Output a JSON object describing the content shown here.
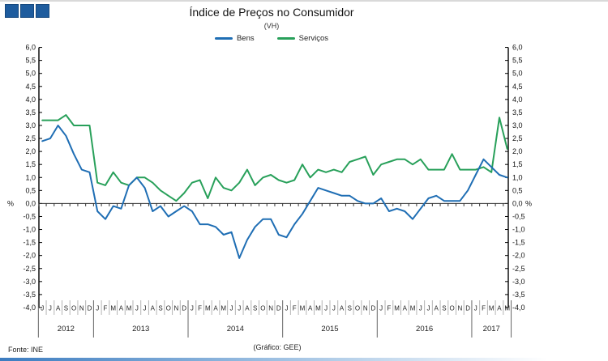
{
  "header": {
    "title": "Índice de Preços no Consumidor",
    "subtitle": "(VH)"
  },
  "legend": [
    {
      "label": "Bens",
      "color": "#1F6EB4"
    },
    {
      "label": "Serviços",
      "color": "#28A05A"
    }
  ],
  "axis": {
    "unit_left": "%",
    "unit_right": "%",
    "ylim": [
      -4.0,
      6.0
    ],
    "step": 0.5,
    "y_tick_labels": [
      "6,0",
      "5,5",
      "5,0",
      "4,5",
      "4,0",
      "3,5",
      "3,0",
      "2,5",
      "2,0",
      "1,5",
      "1,0",
      "0,5",
      "0,0",
      "-0,5",
      "-1,0",
      "-1,5",
      "-2,0",
      "-2,5",
      "-3,0",
      "-3,5",
      "-4,0"
    ]
  },
  "footer": {
    "source": "Fonte: INE",
    "credit": "(Gráfico:  GEE)"
  },
  "chart_data": {
    "type": "line",
    "title": "Índice de Preços no Consumidor",
    "subtitle": "(VH)",
    "ylabel": "%",
    "ylim": [
      -4.0,
      6.0
    ],
    "y_step": 0.5,
    "grid": false,
    "legend_position": "top",
    "x_month_labels": [
      "J",
      "J",
      "A",
      "S",
      "O",
      "N",
      "D",
      "J",
      "F",
      "M",
      "A",
      "M",
      "J",
      "J",
      "A",
      "S",
      "O",
      "N",
      "D",
      "J",
      "F",
      "M",
      "A",
      "M",
      "J",
      "J",
      "A",
      "S",
      "O",
      "N",
      "D",
      "J",
      "F",
      "M",
      "A",
      "M",
      "J",
      "J",
      "A",
      "S",
      "O",
      "N",
      "D",
      "J",
      "F",
      "M",
      "A",
      "M",
      "J",
      "J",
      "A",
      "S",
      "O",
      "N",
      "D",
      "J",
      "F",
      "M",
      "A",
      "M"
    ],
    "years": [
      {
        "label": "2012",
        "months": 7
      },
      {
        "label": "2013",
        "months": 12
      },
      {
        "label": "2014",
        "months": 12
      },
      {
        "label": "2015",
        "months": 12
      },
      {
        "label": "2016",
        "months": 12
      },
      {
        "label": "2017",
        "months": 5
      }
    ],
    "series": [
      {
        "name": "Bens",
        "color": "#1F6EB4",
        "values": [
          2.4,
          2.5,
          3.0,
          2.6,
          1.9,
          1.3,
          1.2,
          -0.3,
          -0.6,
          -0.1,
          -0.2,
          0.7,
          1.0,
          0.6,
          -0.3,
          -0.1,
          -0.5,
          -0.3,
          -0.1,
          -0.3,
          -0.8,
          -0.8,
          -0.9,
          -1.2,
          -1.1,
          -2.1,
          -1.4,
          -0.9,
          -0.6,
          -0.6,
          -1.2,
          -1.3,
          -0.8,
          -0.4,
          0.1,
          0.6,
          0.5,
          0.4,
          0.3,
          0.3,
          0.1,
          0.0,
          0.0,
          0.2,
          -0.3,
          -0.2,
          -0.3,
          -0.6,
          -0.2,
          0.2,
          0.3,
          0.1,
          0.1,
          0.1,
          0.5,
          1.1,
          1.7,
          1.4,
          1.1,
          1.0
        ]
      },
      {
        "name": "Serviços",
        "color": "#28A05A",
        "values": [
          3.2,
          3.2,
          3.2,
          3.4,
          3.0,
          3.0,
          3.0,
          0.8,
          0.7,
          1.2,
          0.8,
          0.7,
          1.0,
          1.0,
          0.8,
          0.5,
          0.3,
          0.1,
          0.4,
          0.8,
          0.9,
          0.2,
          1.0,
          0.6,
          0.5,
          0.8,
          1.3,
          0.7,
          1.0,
          1.1,
          0.9,
          0.8,
          0.9,
          1.5,
          1.0,
          1.3,
          1.2,
          1.3,
          1.2,
          1.6,
          1.7,
          1.8,
          1.1,
          1.5,
          1.6,
          1.7,
          1.7,
          1.5,
          1.7,
          1.3,
          1.3,
          1.3,
          1.9,
          1.3,
          1.3,
          1.3,
          1.4,
          1.2,
          3.3,
          2.1
        ]
      }
    ]
  }
}
